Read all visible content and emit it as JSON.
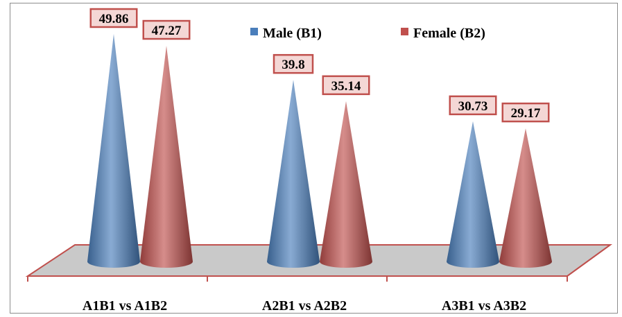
{
  "chart_data": {
    "type": "bar",
    "style": "3d-cone",
    "categories": [
      "A1B1 vs A1B2",
      "A2B1 vs A2B2",
      "A3B1 vs A3B2"
    ],
    "series": [
      {
        "name": "Male (B1)",
        "values": [
          49.86,
          39.8,
          30.73
        ],
        "color": "#4a7ebb"
      },
      {
        "name": "Female (B2)",
        "values": [
          47.27,
          35.14,
          29.17
        ],
        "color": "#c0504d"
      }
    ],
    "data_labels": [
      [
        "49.86",
        "39.8",
        "30.73"
      ],
      [
        "47.27",
        "35.14",
        "29.17"
      ]
    ],
    "title": "",
    "xlabel": "",
    "ylabel": "",
    "ylim": [
      0,
      52
    ],
    "grid": false,
    "legend": "top-right",
    "colors": {
      "floor": "#c9c9c9",
      "floor_edge": "#c0504d",
      "label_box_fill": "#f4d7d5",
      "label_box_border": "#c0504d"
    }
  }
}
